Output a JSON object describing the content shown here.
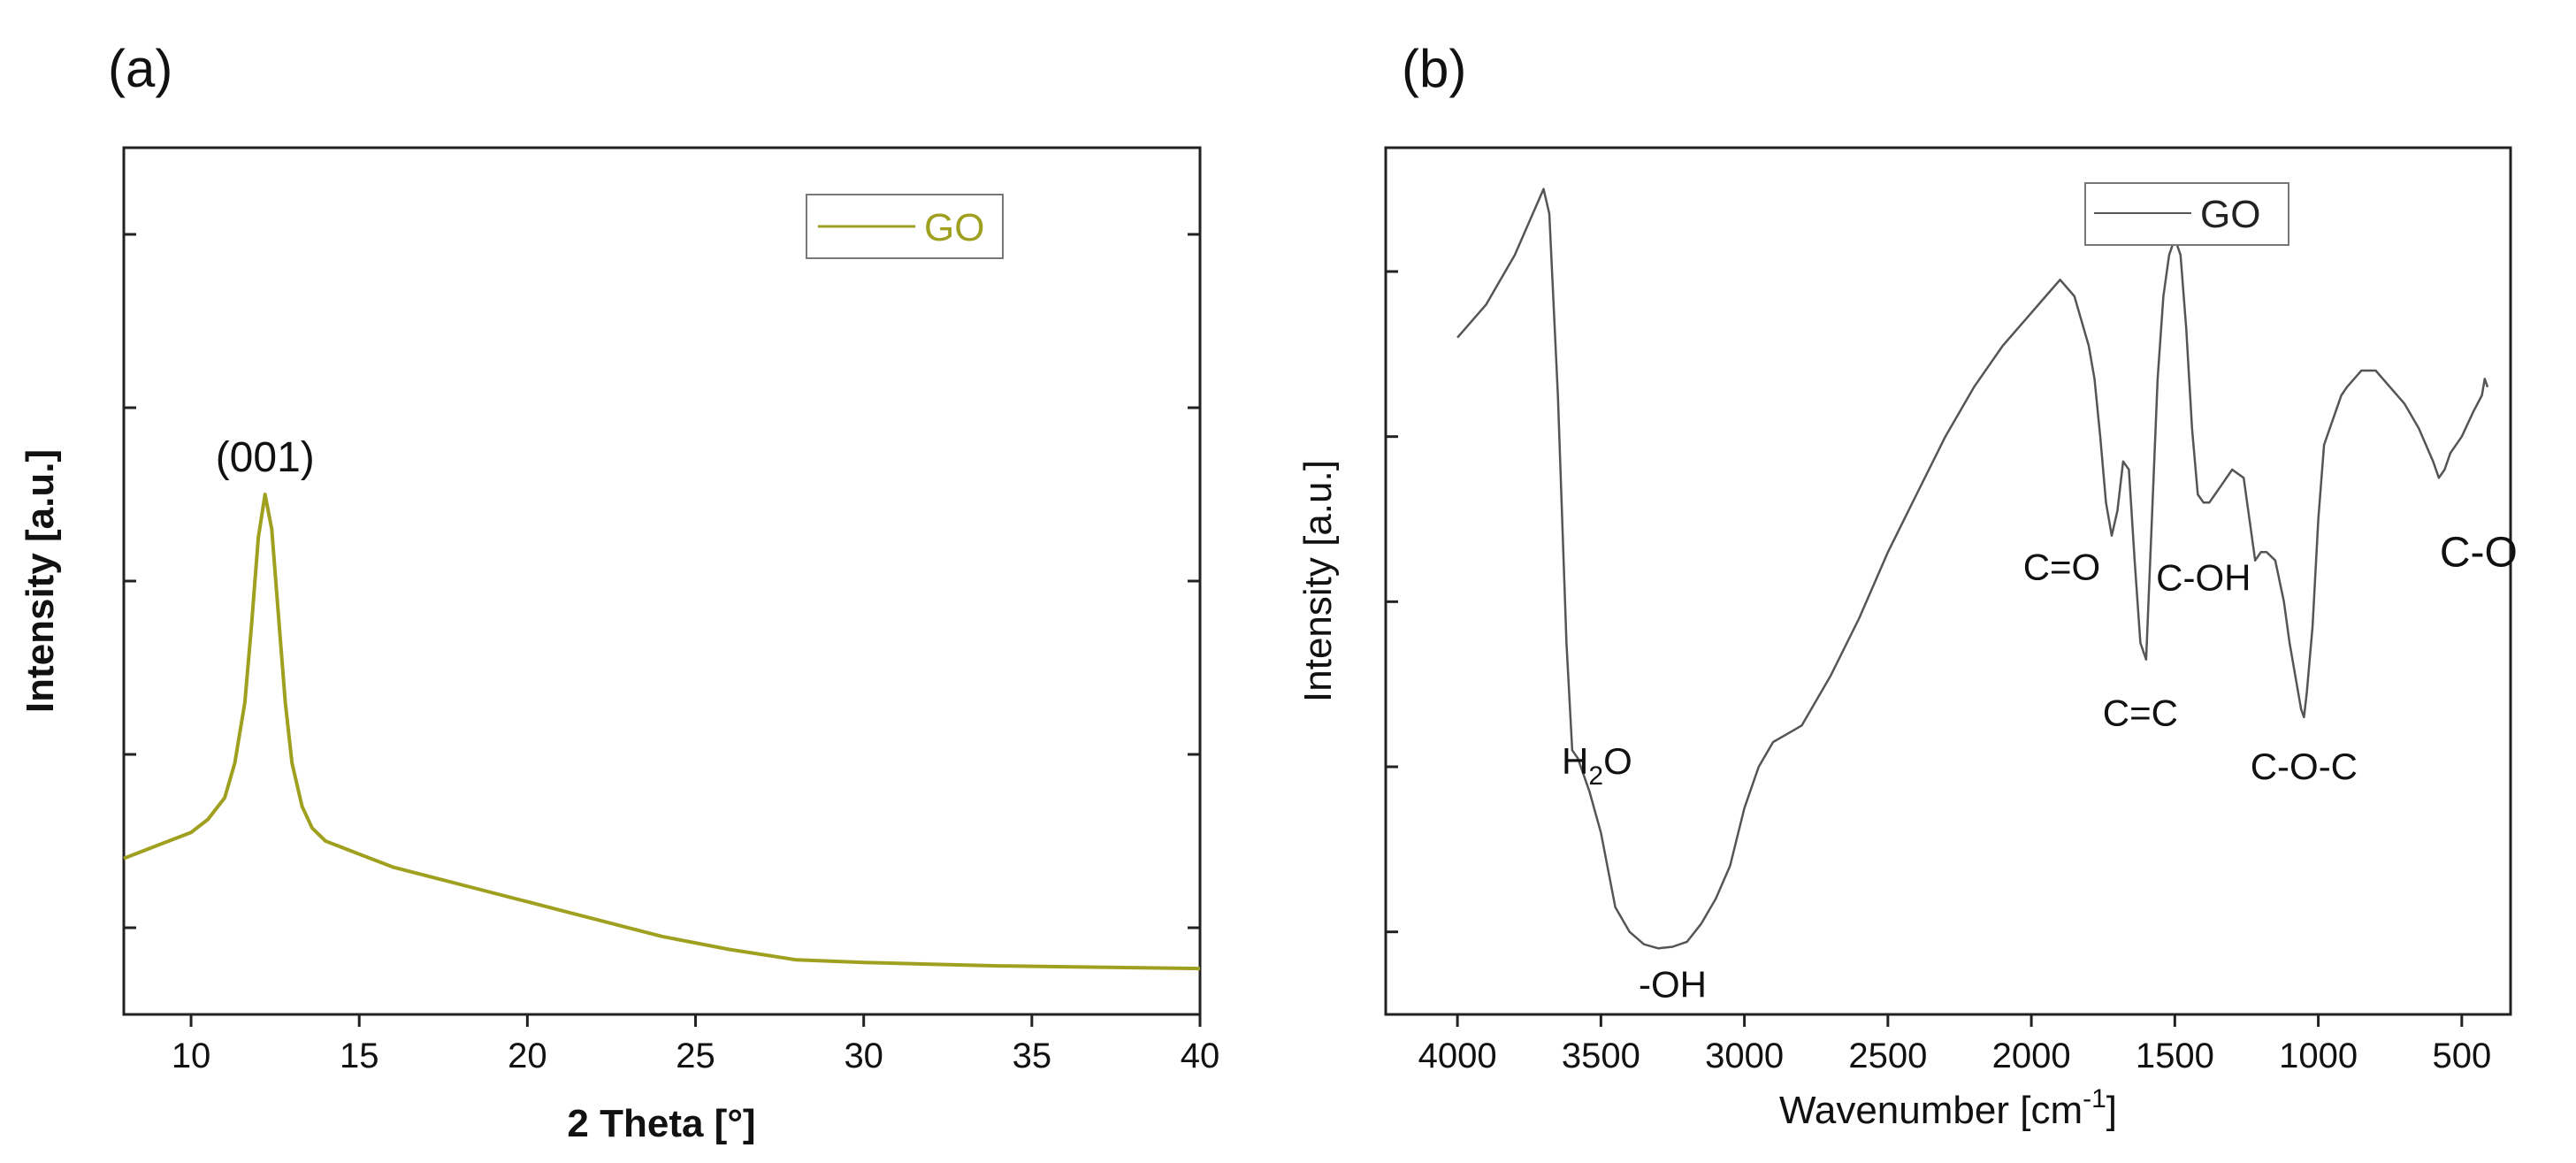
{
  "chart_data": [
    {
      "type": "line",
      "panel_label": "(a)",
      "title": "",
      "xlabel": "2 Theta [°]",
      "ylabel": "Intensity [a.u.]",
      "xlim": [
        8,
        40
      ],
      "ylim": [
        0,
        100
      ],
      "xticks": [
        10,
        15,
        20,
        25,
        30,
        35,
        40
      ],
      "xtick_labels": [
        "10",
        "15",
        "20",
        "25",
        "30",
        "35",
        "40"
      ],
      "yticks": [
        10,
        30,
        50,
        70,
        90
      ],
      "legend": {
        "position": "top-right",
        "entries": [
          "GO"
        ]
      },
      "series": [
        {
          "name": "GO",
          "color": "#a0a020",
          "x": [
            8,
            9,
            10,
            10.5,
            11,
            11.3,
            11.6,
            11.8,
            12.0,
            12.2,
            12.4,
            12.6,
            12.8,
            13.0,
            13.3,
            13.6,
            14,
            15,
            16,
            18,
            20,
            22,
            24,
            26,
            28,
            30,
            32,
            34,
            36,
            38,
            40
          ],
          "y": [
            18,
            19.5,
            21,
            22.5,
            25,
            29,
            36,
            45,
            55,
            60,
            56,
            46,
            36,
            29,
            24,
            21.5,
            20,
            18.5,
            17,
            15,
            13,
            11,
            9,
            7.5,
            6.3,
            6,
            5.8,
            5.6,
            5.5,
            5.4,
            5.3
          ]
        }
      ],
      "annotations": [
        {
          "text": "(001)",
          "x": 12.2,
          "y": 60
        }
      ]
    },
    {
      "type": "line",
      "panel_label": "(b)",
      "title": "",
      "xlabel": "Wavenumber [cm",
      "xlabel_superscript": "-1",
      "xlabel_suffix": "]",
      "ylabel": "Intensity [a.u.]",
      "xlim": [
        4250,
        330
      ],
      "ylim": [
        -5,
        100
      ],
      "xticks": [
        4000,
        3500,
        3000,
        2500,
        2000,
        1500,
        1000,
        500
      ],
      "xtick_labels": [
        "4000",
        "3500",
        "3000",
        "2500",
        "2000",
        "1500",
        "1000",
        "500"
      ],
      "yticks": [
        5,
        25,
        45,
        65,
        85
      ],
      "legend": {
        "position": "top-right",
        "entries": [
          "GO"
        ]
      },
      "series": [
        {
          "name": "GO",
          "color": "#555555",
          "x": [
            4000,
            3900,
            3800,
            3750,
            3700,
            3680,
            3650,
            3620,
            3600,
            3580,
            3560,
            3540,
            3500,
            3450,
            3400,
            3350,
            3300,
            3250,
            3200,
            3150,
            3100,
            3050,
            3000,
            2950,
            2900,
            2850,
            2800,
            2700,
            2600,
            2500,
            2400,
            2300,
            2200,
            2100,
            2000,
            1950,
            1900,
            1850,
            1800,
            1780,
            1760,
            1740,
            1720,
            1700,
            1680,
            1660,
            1640,
            1620,
            1600,
            1580,
            1560,
            1540,
            1520,
            1500,
            1480,
            1460,
            1440,
            1420,
            1400,
            1380,
            1360,
            1340,
            1300,
            1260,
            1240,
            1220,
            1200,
            1180,
            1150,
            1120,
            1100,
            1080,
            1060,
            1050,
            1040,
            1020,
            1000,
            980,
            960,
            940,
            920,
            900,
            850,
            800,
            750,
            700,
            650,
            600,
            580,
            560,
            540,
            500,
            460,
            430,
            420,
            410
          ],
          "y": [
            77,
            81,
            87,
            91,
            95,
            92,
            70,
            40,
            27,
            26,
            24,
            22,
            17,
            8,
            5,
            3.5,
            3,
            3.2,
            3.8,
            6,
            9,
            13,
            20,
            25,
            28,
            29,
            30,
            36,
            43,
            51,
            58,
            65,
            71,
            76,
            80,
            82,
            84,
            82,
            76,
            72,
            65,
            57,
            53,
            56,
            62,
            61,
            50,
            40,
            38,
            55,
            72,
            82,
            87,
            89,
            87,
            78,
            66,
            58,
            57,
            57,
            58,
            59,
            61,
            60,
            55,
            50,
            51,
            51,
            50,
            45,
            40,
            36,
            32,
            31,
            34,
            42,
            55,
            64,
            66,
            68,
            70,
            71,
            73,
            73,
            71,
            69,
            66,
            62,
            60,
            61,
            63,
            65,
            68,
            70,
            72,
            71
          ]
        }
      ],
      "annotations": [
        {
          "text": "H",
          "sub": "2",
          "suffix": "O",
          "x": 3560,
          "y": 22
        },
        {
          "text": "-OH",
          "x": 3250,
          "y": 3
        },
        {
          "text": "C=O",
          "x": 1740,
          "y": 53
        },
        {
          "text": "C=C",
          "x": 1620,
          "y": 38
        },
        {
          "text": "C-OH",
          "x": 1400,
          "y": 56
        },
        {
          "text": "C-O-C",
          "x": 1050,
          "y": 31
        },
        {
          "text": "C-O",
          "x": 580,
          "y": 60
        }
      ]
    }
  ]
}
